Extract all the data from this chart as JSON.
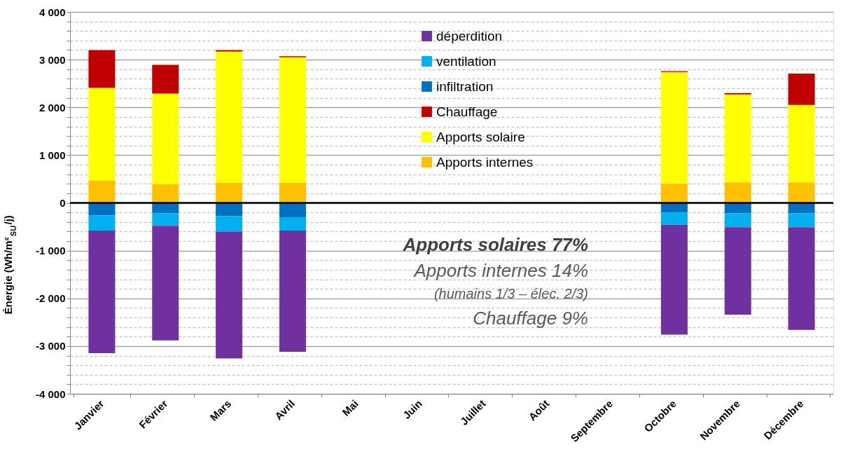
{
  "chart_data": {
    "type": "bar",
    "stacked": true,
    "ylabel": "Énergie (Wh/m²$_{SU}$/j)",
    "categories": [
      "Janvier",
      "Février",
      "Mars",
      "Avril",
      "Mai",
      "Juin",
      "Juillet",
      "Août",
      "Septembre",
      "Octobre",
      "Novembre",
      "Décembre"
    ],
    "series": [
      {
        "name": "Apports internes",
        "color": "#ffc000",
        "values": [
          470,
          390,
          420,
          420,
          null,
          null,
          null,
          null,
          null,
          400,
          430,
          430
        ]
      },
      {
        "name": "Apports solaire",
        "color": "#ffff00",
        "values": [
          1940,
          1900,
          2750,
          2630,
          null,
          null,
          null,
          null,
          null,
          2340,
          1840,
          1620
        ]
      },
      {
        "name": "Chauffage",
        "color": "#c00000",
        "values": [
          790,
          600,
          30,
          20,
          null,
          null,
          null,
          null,
          null,
          20,
          30,
          660
        ]
      },
      {
        "name": "infiltration",
        "color": "#0070c0",
        "values": [
          -260,
          -220,
          -280,
          -300,
          null,
          null,
          null,
          null,
          null,
          -200,
          -220,
          -220
        ]
      },
      {
        "name": "ventilation",
        "color": "#00b0f0",
        "values": [
          -320,
          -260,
          -320,
          -280,
          null,
          null,
          null,
          null,
          null,
          -260,
          -290,
          -290
        ]
      },
      {
        "name": "déperdition",
        "color": "#7030a0",
        "values": [
          -2570,
          -2400,
          -2660,
          -2540,
          null,
          null,
          null,
          null,
          null,
          -2300,
          -1830,
          -2150
        ]
      }
    ],
    "ylim": [
      -4000,
      4000
    ],
    "yticks": [
      {
        "value": -4000,
        "label": "-4 000"
      },
      {
        "value": -3800,
        "label": null
      },
      {
        "value": -3600,
        "label": null
      },
      {
        "value": -3400,
        "label": null
      },
      {
        "value": -3200,
        "label": null
      },
      {
        "value": -3000,
        "label": "-3 000"
      },
      {
        "value": -2800,
        "label": null
      },
      {
        "value": -2600,
        "label": null
      },
      {
        "value": -2400,
        "label": null
      },
      {
        "value": -2200,
        "label": null
      },
      {
        "value": -2000,
        "label": "-2 000"
      },
      {
        "value": -1800,
        "label": null
      },
      {
        "value": -1600,
        "label": null
      },
      {
        "value": -1400,
        "label": null
      },
      {
        "value": -1200,
        "label": null
      },
      {
        "value": -1000,
        "label": "-1 000"
      },
      {
        "value": -800,
        "label": null
      },
      {
        "value": -600,
        "label": null
      },
      {
        "value": -400,
        "label": null
      },
      {
        "value": -200,
        "label": null
      },
      0,
      {
        "value": 200,
        "label": null
      },
      {
        "value": 400,
        "label": null
      },
      {
        "value": 600,
        "label": null
      },
      {
        "value": 800,
        "label": null
      },
      {
        "value": 1000,
        "label": "1 000"
      },
      {
        "value": 1200,
        "label": null
      },
      {
        "value": 1400,
        "label": null
      },
      {
        "value": 1600,
        "label": null
      },
      {
        "value": 1800,
        "label": null
      },
      {
        "value": 2000,
        "label": "2 000"
      },
      {
        "value": 2200,
        "label": null
      },
      {
        "value": 2400,
        "label": null
      },
      {
        "value": 2600,
        "label": null
      },
      {
        "value": 2800,
        "label": null
      },
      {
        "value": 3000,
        "label": "3 000"
      },
      {
        "value": 3200,
        "label": null
      },
      {
        "value": 3400,
        "label": null
      },
      {
        "value": 3600,
        "label": null
      },
      {
        "value": 3800,
        "label": null
      },
      {
        "value": 4000,
        "label": "4 000"
      }
    ],
    "grid": "y",
    "legend": "top",
    "ref_lines": [
      {
        "axis": "y",
        "value": 0,
        "color": "#000000"
      }
    ],
    "annotations": [
      "Apports solaires 77%",
      "Apports internes 14%",
      "(humains 1/3 – élec. 2/3)",
      "Chauffage 9%"
    ]
  }
}
